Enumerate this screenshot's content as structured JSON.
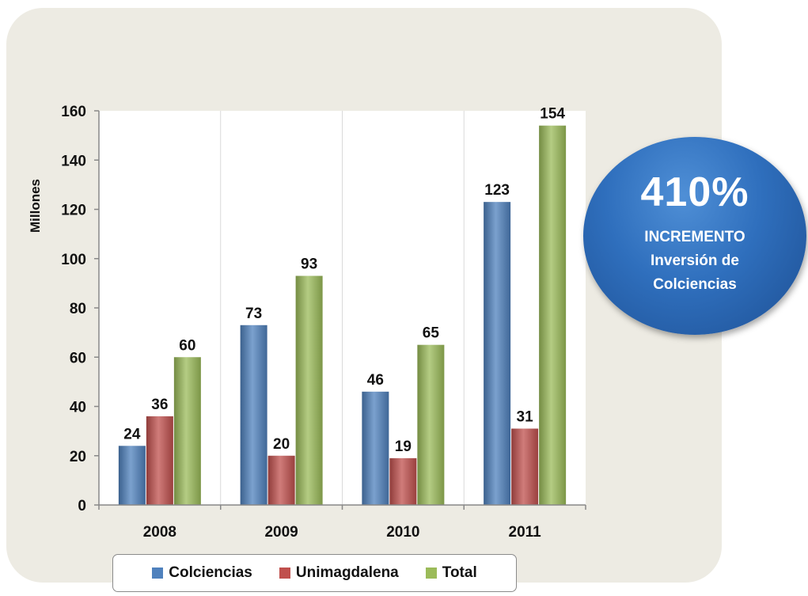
{
  "chart_data": {
    "type": "bar",
    "categories": [
      "2008",
      "2009",
      "2010",
      "2011"
    ],
    "series": [
      {
        "name": "Colciencias",
        "values": [
          24,
          73,
          46,
          123
        ],
        "labels": [
          "24",
          "73",
          "46",
          "123"
        ],
        "color": "#4f81bd"
      },
      {
        "name": "Unimagdalena",
        "values": [
          36,
          20,
          19,
          31
        ],
        "labels": [
          "36",
          "20",
          "19",
          "31"
        ],
        "color": "#c0504d"
      },
      {
        "name": "Total",
        "values": [
          60,
          93,
          65,
          154
        ],
        "labels": [
          "60",
          "93",
          "65",
          "154"
        ],
        "color": "#9bbb59"
      }
    ],
    "ylabel": "Millones",
    "ylim": [
      0,
      160
    ],
    "yticks": [
      0,
      20,
      40,
      60,
      80,
      100,
      120,
      140,
      160
    ],
    "ytick_labels": [
      "0",
      "20",
      "40",
      "60",
      "80",
      "100",
      "120",
      "140",
      "160"
    ],
    "grid": "vertical",
    "legend": "bottom"
  },
  "badge": {
    "percent": "410%",
    "line1": "INCREMENTO",
    "line2": "Inversión de",
    "line3": "Colciencias"
  }
}
